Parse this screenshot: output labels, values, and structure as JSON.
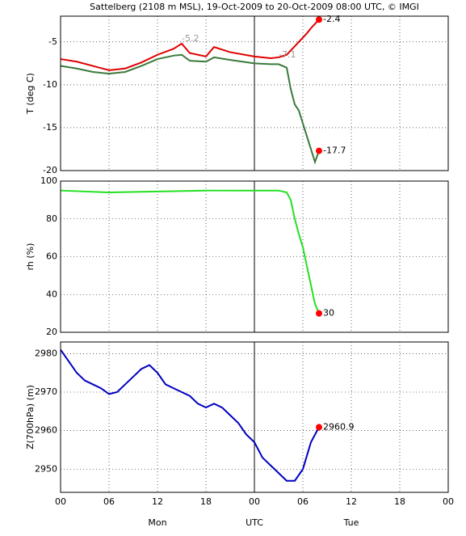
{
  "chart_data": [
    {
      "type": "line",
      "title": "Sattelberg (2108 m MSL), 19-Oct-2009 to 20-Oct-2009 08:00 UTC, © IMGI",
      "y_label": "T (deg C)",
      "x": [
        0,
        2,
        4,
        6,
        8,
        10,
        12,
        14,
        15,
        16,
        18,
        19,
        21,
        24,
        26,
        27,
        28,
        28.5,
        29,
        29.5,
        30,
        30.5,
        31,
        31.5,
        32
      ],
      "series": [
        {
          "color": "#e00000",
          "values": [
            -7,
            -7.3,
            -7.8,
            -8.3,
            -8.1,
            -7.4,
            -6.5,
            -5.8,
            -5.2,
            -6.3,
            -6.7,
            -5.6,
            -6.2,
            -6.7,
            -6.9,
            -6.8,
            -6.5,
            -6.0,
            -5.5,
            -5.0,
            -4.5,
            -4.0,
            -3.4,
            -2.9,
            -2.4
          ]
        },
        {
          "color": "#3a7a3a",
          "values": [
            -7.8,
            -8.1,
            -8.5,
            -8.7,
            -8.5,
            -7.8,
            -7.0,
            -6.6,
            -6.5,
            -7.2,
            -7.3,
            -6.8,
            -7.1,
            -7.5,
            -7.6,
            -7.6,
            -8.0,
            -10.5,
            -12.3,
            -13.0,
            -14.5,
            -16.0,
            -17.5,
            -19.0,
            -17.7
          ]
        }
      ],
      "annotations": [
        {
          "x": 15,
          "y": -5.2
        },
        {
          "x": 27,
          "y": -7.1
        }
      ],
      "xlim": [
        0,
        48
      ],
      "xticks": [
        0,
        6,
        12,
        18,
        24,
        30,
        36,
        42,
        48
      ],
      "ylim": [
        -20,
        -2
      ],
      "yticks": [
        -20,
        -15,
        -10,
        -5
      ],
      "grid": true,
      "vline": 24
    },
    {
      "type": "line",
      "y_label": "rh (%)",
      "x": [
        0,
        6,
        12,
        18,
        24,
        27,
        28,
        28.5,
        29,
        29.5,
        30,
        30.5,
        31,
        31.5,
        32
      ],
      "series": [
        {
          "color": "#22e022",
          "values": [
            95,
            94,
            94.5,
            95,
            95,
            95,
            94,
            90,
            80,
            72,
            65,
            55,
            45,
            35,
            30
          ]
        }
      ],
      "xlim": [
        0,
        48
      ],
      "xticks": [
        0,
        6,
        12,
        18,
        24,
        30,
        36,
        42,
        48
      ],
      "ylim": [
        20,
        100
      ],
      "yticks": [
        20,
        40,
        60,
        80,
        100
      ],
      "grid": true,
      "vline": 24
    },
    {
      "type": "line",
      "y_label": "Z(700hPa) (m)",
      "x": [
        0,
        1,
        2,
        3,
        4,
        5,
        6,
        7,
        8,
        9,
        10,
        11,
        12,
        13,
        14,
        15,
        16,
        17,
        18,
        19,
        20,
        21,
        22,
        23,
        24,
        25,
        26,
        27,
        28,
        29,
        30,
        31,
        32
      ],
      "series": [
        {
          "color": "#0000c0",
          "values": [
            2981,
            2978,
            2975,
            2973,
            2972,
            2971,
            2969.5,
            2970,
            2972,
            2974,
            2976,
            2977,
            2975,
            2972,
            2971,
            2970,
            2969,
            2967,
            2966,
            2967,
            2966,
            2964,
            2962,
            2959,
            2957,
            2953,
            2951,
            2949,
            2947,
            2947,
            2950,
            2957,
            2960.9
          ]
        }
      ],
      "xlim": [
        0,
        48
      ],
      "xticks": [
        {
          "value": 0,
          "label": "00"
        },
        {
          "value": 6,
          "label": "06"
        },
        {
          "value": 12,
          "label": "12"
        },
        {
          "value": 18,
          "label": "18"
        },
        {
          "value": 24,
          "label": "00"
        },
        {
          "value": 30,
          "label": "06"
        },
        {
          "value": 36,
          "label": "12"
        },
        {
          "value": 42,
          "label": "18"
        },
        {
          "value": 48,
          "label": "00"
        }
      ],
      "day_labels": [
        {
          "value": 12,
          "label": "Mon"
        },
        {
          "value": 24,
          "label": "UTC"
        },
        {
          "value": 36,
          "label": "Tue"
        }
      ],
      "ylim": [
        2944,
        2983
      ],
      "yticks": [
        2950,
        2960,
        2970,
        2980
      ],
      "grid": true,
      "vline": 24
    }
  ]
}
